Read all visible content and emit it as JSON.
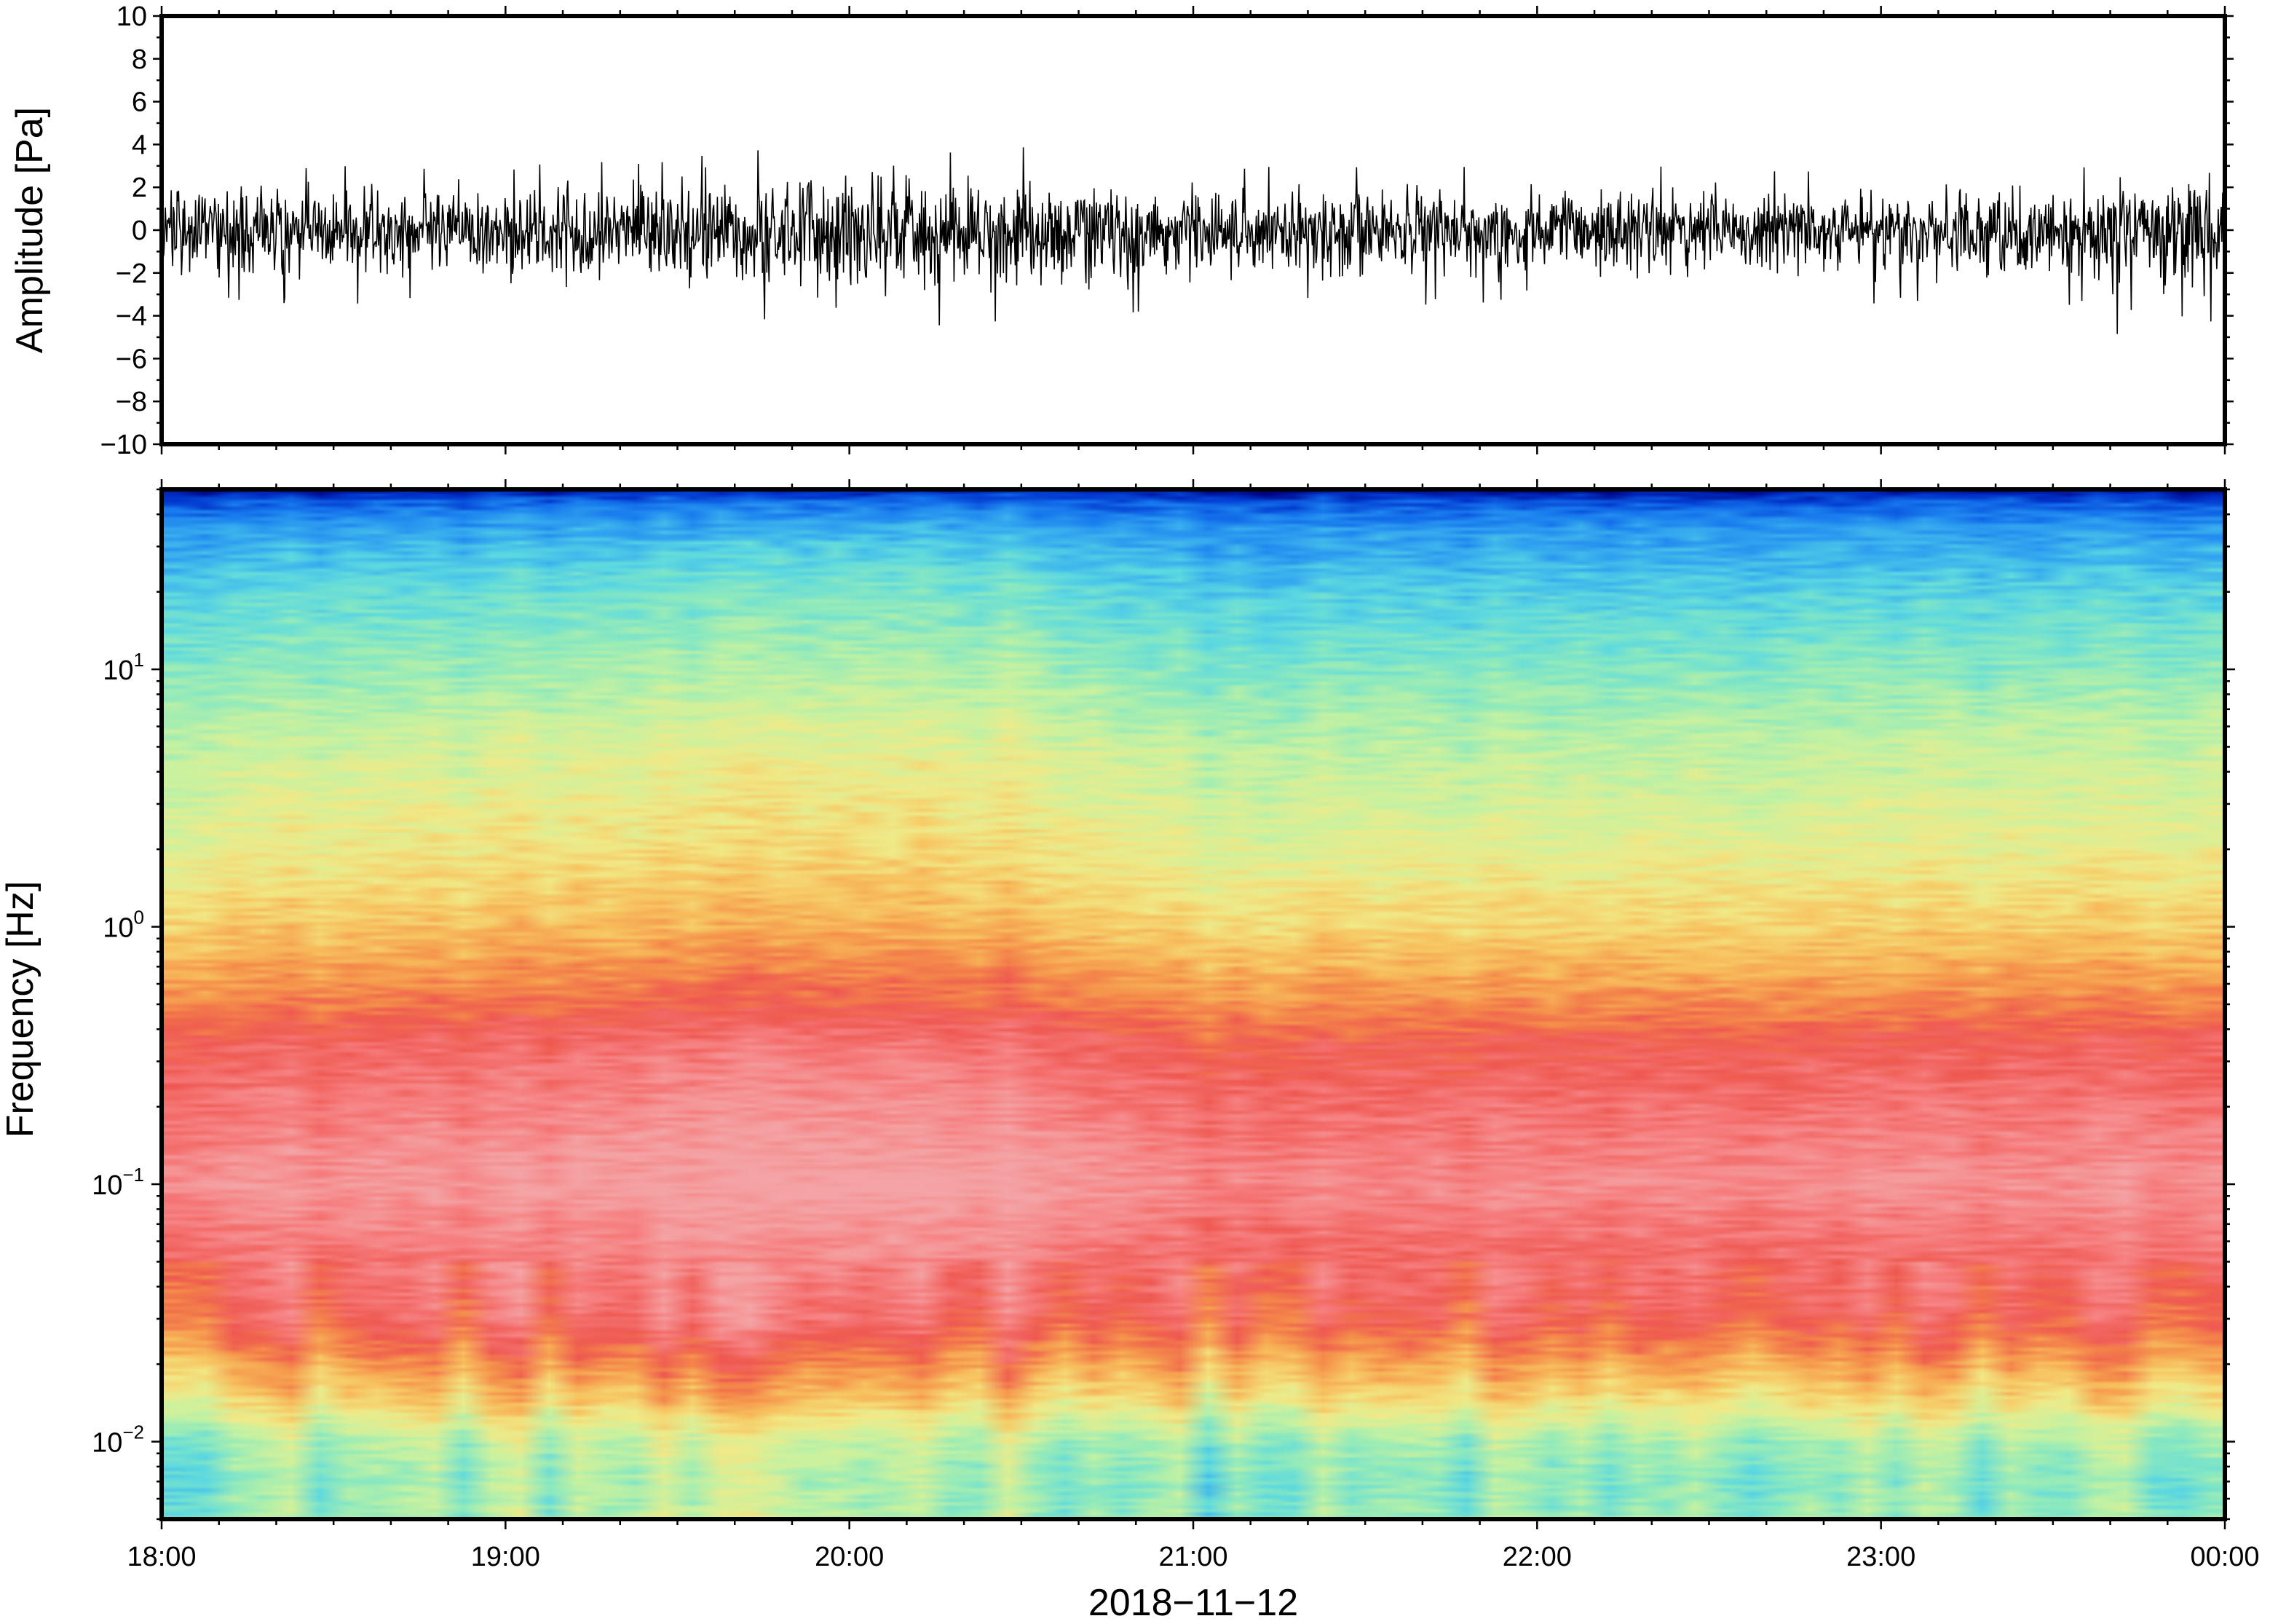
{
  "chart_data": [
    {
      "type": "line",
      "ylabel": "Amplitude [Pa]",
      "ylim": [
        -10,
        10
      ],
      "yticks": [
        -10,
        -8,
        -6,
        -4,
        -2,
        0,
        2,
        4,
        6,
        8,
        10
      ],
      "ytick_labels": [
        "−10",
        "−8",
        "−6",
        "−4",
        "−2",
        "0",
        "2",
        "4",
        "6",
        "8",
        "10"
      ],
      "xlim": [
        "2018-11-12 18:00",
        "2018-11-13 00:00"
      ],
      "series": [
        {
          "color": "#000000",
          "envelope": {
            "x": [
              "18:00",
              "18:30",
              "19:00",
              "19:30",
              "19:45",
              "20:00",
              "20:15",
              "20:30",
              "21:00",
              "21:30",
              "22:00",
              "22:30",
              "23:00",
              "23:30",
              "23:50",
              "00:00"
            ],
            "max": [
              3.5,
              3.0,
              3.0,
              3.5,
              4.0,
              5.0,
              4.0,
              4.0,
              3.0,
              3.0,
              3.0,
              3.0,
              3.0,
              3.0,
              3.8,
              3.5
            ],
            "min": [
              -3.5,
              -3.5,
              -3.5,
              -4.0,
              -5.5,
              -4.5,
              -4.5,
              -4.5,
              -3.5,
              -3.5,
              -3.5,
              -3.5,
              -3.5,
              -3.5,
              -6.0,
              -4.0
            ]
          }
        }
      ]
    },
    {
      "type": "heatmap",
      "xlabel": "2018−11−12",
      "ylabel": "Frequency [Hz]",
      "yscale": "log",
      "ylim": [
        0.005,
        50
      ],
      "yticks": [
        0.01,
        0.1,
        1,
        10
      ],
      "ytick_labels": [
        {
          "base": "10",
          "exp": "−2"
        },
        {
          "base": "10",
          "exp": "−1"
        },
        {
          "base": "10",
          "exp": "0"
        },
        {
          "base": "10",
          "exp": "1"
        }
      ],
      "xlim": [
        "2018-11-12 18:00",
        "2018-11-13 00:00"
      ],
      "xticks": [
        "18:00",
        "19:00",
        "20:00",
        "21:00",
        "22:00",
        "23:00",
        "00:00"
      ],
      "colormap": [
        "#00007a",
        "#0033cc",
        "#1677ee",
        "#34a8f0",
        "#5ad8e2",
        "#8eeabd",
        "#c9f2a0",
        "#f1ea88",
        "#f8c25e",
        "#f58f4a",
        "#ef5750",
        "#f77f80",
        "#f4a4a6"
      ],
      "spectral_profile": {
        "freq_hz": [
          0.005,
          0.007,
          0.01,
          0.015,
          0.02,
          0.03,
          0.05,
          0.1,
          0.2,
          0.35,
          0.5,
          1,
          2,
          5,
          10,
          20,
          35,
          45,
          50
        ],
        "level": [
          5.2,
          5.0,
          5.5,
          7.5,
          8.6,
          10.1,
          10.6,
          11.5,
          10.8,
          10.2,
          9.2,
          7.7,
          6.8,
          6.0,
          5.0,
          4.0,
          2.8,
          1.5,
          0.2
        ]
      },
      "time_variation": {
        "x": [
          "18:00",
          "19:00",
          "20:00",
          "20:30",
          "21:00",
          "22:00",
          "23:00",
          "00:00"
        ],
        "shift": [
          0.0,
          0.3,
          0.7,
          0.6,
          -0.3,
          -0.2,
          -0.1,
          0.1
        ]
      }
    }
  ]
}
